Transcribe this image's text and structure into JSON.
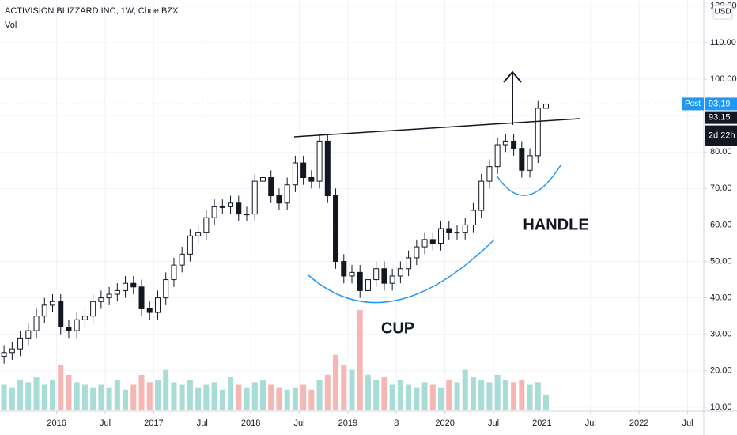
{
  "chart_data": {
    "type": "candlestick",
    "title": "ACTIVISION BLIZZARD INC, 1W, Cboe BZX",
    "volume_label": "Vol",
    "currency": "USD",
    "annotations": {
      "cup": "CUP",
      "handle": "HANDLE"
    },
    "x": [
      "2015-06",
      "2015-07",
      "2015-08",
      "2015-09",
      "2015-10",
      "2015-11",
      "2015-12",
      "2016-01",
      "2016-02",
      "2016-03",
      "2016-04",
      "2016-05",
      "2016-06",
      "2016-07",
      "2016-08",
      "2016-09",
      "2016-10",
      "2016-11",
      "2016-12",
      "2017-01",
      "2017-02",
      "2017-03",
      "2017-04",
      "2017-05",
      "2017-06",
      "2017-07",
      "2017-08",
      "2017-09",
      "2017-10",
      "2017-11",
      "2017-12",
      "2018-01",
      "2018-02",
      "2018-03",
      "2018-04",
      "2018-05",
      "2018-06",
      "2018-07",
      "2018-08",
      "2018-09",
      "2018-10",
      "2018-11",
      "2018-12",
      "2019-01",
      "2019-02",
      "2019-03",
      "2019-04",
      "2019-05",
      "2019-06",
      "2019-07",
      "2019-08",
      "2019-09",
      "2019-10",
      "2019-11",
      "2019-12",
      "2020-01",
      "2020-02",
      "2020-03",
      "2020-04",
      "2020-05",
      "2020-06",
      "2020-07",
      "2020-08",
      "2020-09",
      "2020-10",
      "2020-11",
      "2020-12",
      "2021-01"
    ],
    "open": [
      24,
      25,
      26,
      29,
      31,
      35,
      38,
      39,
      32,
      31,
      34,
      35,
      39,
      40,
      41,
      42,
      44,
      43,
      37,
      36,
      40,
      45,
      49,
      52,
      57,
      58,
      62,
      65,
      65,
      66,
      63,
      63,
      72,
      73,
      68,
      66,
      71,
      77,
      73,
      72,
      83,
      68,
      50,
      46,
      47,
      42,
      45,
      48,
      44,
      46,
      48,
      51,
      54,
      56,
      55,
      59,
      58,
      58,
      60,
      64,
      72,
      76,
      82,
      83,
      81,
      75,
      79,
      92
    ],
    "high": [
      27,
      28,
      31,
      33,
      37,
      40,
      41,
      41,
      34,
      36,
      37,
      41,
      42,
      43,
      44,
      46,
      46,
      45,
      39,
      42,
      47,
      51,
      54,
      59,
      60,
      64,
      67,
      67,
      68,
      68,
      65,
      74,
      75,
      75,
      70,
      73,
      79,
      79,
      75,
      85,
      85,
      70,
      52,
      49,
      49,
      47,
      50,
      50,
      48,
      50,
      53,
      56,
      58,
      58,
      61,
      61,
      60,
      62,
      66,
      74,
      78,
      84,
      85,
      85,
      83,
      81,
      94,
      95
    ],
    "low": [
      22,
      23,
      24,
      27,
      29,
      33,
      36,
      30,
      29,
      29,
      32,
      33,
      37,
      38,
      39,
      40,
      41,
      35,
      34,
      34,
      38,
      43,
      47,
      50,
      55,
      56,
      60,
      63,
      63,
      61,
      61,
      61,
      70,
      66,
      64,
      64,
      69,
      71,
      70,
      70,
      66,
      48,
      44,
      44,
      40,
      40,
      43,
      42,
      42,
      44,
      46,
      49,
      52,
      53,
      53,
      56,
      56,
      56,
      58,
      62,
      70,
      74,
      80,
      79,
      73,
      73,
      77,
      90
    ],
    "close": [
      25,
      26,
      29,
      31,
      35,
      38,
      39,
      32,
      31,
      34,
      35,
      39,
      40,
      41,
      42,
      44,
      43,
      37,
      36,
      40,
      45,
      49,
      52,
      57,
      58,
      62,
      65,
      65,
      66,
      63,
      63,
      72,
      73,
      68,
      66,
      71,
      77,
      73,
      72,
      83,
      68,
      50,
      46,
      47,
      42,
      45,
      48,
      44,
      46,
      48,
      51,
      54,
      56,
      55,
      59,
      58,
      58,
      60,
      64,
      72,
      76,
      82,
      83,
      81,
      75,
      79,
      92,
      93.15
    ],
    "volume": [
      10,
      9,
      12,
      11,
      13,
      10,
      12,
      18,
      14,
      11,
      10,
      9,
      10,
      9,
      12,
      8,
      10,
      14,
      11,
      12,
      16,
      11,
      10,
      12,
      9,
      10,
      11,
      8,
      13,
      10,
      9,
      11,
      12,
      10,
      9,
      8,
      9,
      10,
      8,
      12,
      14,
      22,
      18,
      16,
      40,
      14,
      12,
      13,
      10,
      12,
      10,
      9,
      11,
      10,
      9,
      12,
      11,
      16,
      13,
      12,
      11,
      14,
      12,
      11,
      12,
      10,
      11,
      6
    ],
    "candle_color": "#131722",
    "volume_up_color": "#a8dcd6",
    "volume_down_color": "#f6b6b4",
    "xlim": [
      "2015-06",
      "2022-09"
    ],
    "xticks": [
      {
        "value": "2016-01",
        "label": "2016"
      },
      {
        "value": "2016-07",
        "label": "Jul"
      },
      {
        "value": "2017-01",
        "label": "2017"
      },
      {
        "value": "2017-07",
        "label": "Jul"
      },
      {
        "value": "2018-01",
        "label": "2018"
      },
      {
        "value": "2018-07",
        "label": "Jul"
      },
      {
        "value": "2019-01",
        "label": "2019"
      },
      {
        "value": "2019-07",
        "label": "8"
      },
      {
        "value": "2020-01",
        "label": "2020"
      },
      {
        "value": "2020-07",
        "label": "Jul"
      },
      {
        "value": "2021-01",
        "label": "2021"
      },
      {
        "value": "2021-07",
        "label": "Jul"
      },
      {
        "value": "2022-01",
        "label": "2022"
      },
      {
        "value": "2022-07",
        "label": "Jul"
      }
    ],
    "ylim": [
      8.9,
      121.7
    ],
    "yticks": [
      {
        "value": 10,
        "label": "10.00"
      },
      {
        "value": 20,
        "label": "20.00"
      },
      {
        "value": 30,
        "label": "30.00"
      },
      {
        "value": 40,
        "label": "40.00"
      },
      {
        "value": 50,
        "label": "50.00"
      },
      {
        "value": 60,
        "label": "60.00"
      },
      {
        "value": 70,
        "label": "70.00"
      },
      {
        "value": 80,
        "label": "80.00"
      },
      {
        "value": 90,
        "label": "90.00"
      },
      {
        "value": 100,
        "label": "100.00"
      },
      {
        "value": 110,
        "label": "110.00"
      },
      {
        "value": 120,
        "label": "120.00"
      }
    ],
    "grid": true,
    "post_price": {
      "tag": "Post",
      "value": 93.19,
      "color": "#2196f3"
    },
    "last_close": 93.15,
    "countdown": "2d 22h"
  }
}
